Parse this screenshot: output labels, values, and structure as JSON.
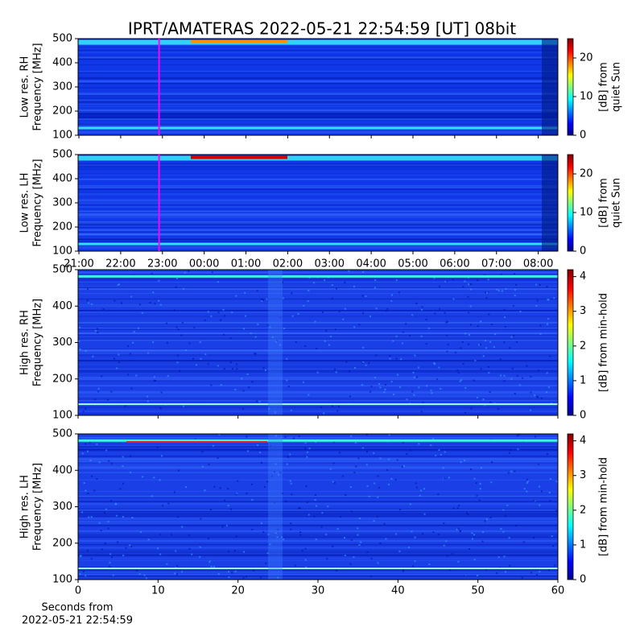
{
  "chart_data": [
    {
      "type": "heatmap",
      "title": "IPRT/AMATERAS 2022-05-21 22:54:59 [UT]   08bit",
      "ylabel": [
        "Low res. RH",
        "Frequency [MHz]"
      ],
      "ylim": [
        100,
        500
      ],
      "yticks": [
        100,
        200,
        300,
        400,
        500
      ],
      "colormap": "jet",
      "colorbar": {
        "label": [
          "[dB] from",
          "quiet Sun"
        ],
        "lim": [
          0,
          25
        ],
        "ticks": [
          0,
          10,
          20
        ]
      }
    },
    {
      "type": "heatmap",
      "ylabel": [
        "Low res. LH",
        "Frequency [MHz]"
      ],
      "ylim": [
        100,
        500
      ],
      "yticks": [
        100,
        200,
        300,
        400,
        500
      ],
      "xlim": [
        -0.02,
        11.47
      ],
      "xticks": [
        {
          "value": 0,
          "label": "21:00"
        },
        {
          "value": 1,
          "label": "22:00"
        },
        {
          "value": 2,
          "label": "23:00"
        },
        {
          "value": 3,
          "label": "00:00"
        },
        {
          "value": 4,
          "label": "01:00"
        },
        {
          "value": 5,
          "label": "02:00"
        },
        {
          "value": 6,
          "label": "03:00"
        },
        {
          "value": 7,
          "label": "04:00"
        },
        {
          "value": 8,
          "label": "05:00"
        },
        {
          "value": 9,
          "label": "06:00"
        },
        {
          "value": 10,
          "label": "07:00"
        },
        {
          "value": 11,
          "label": "08:00"
        }
      ],
      "cursor_x": 1.92,
      "cursor_color": "#ff00ff",
      "colormap": "jet",
      "colorbar": {
        "label": [
          "[dB] from",
          "quiet Sun"
        ],
        "lim": [
          0,
          25
        ],
        "ticks": [
          0,
          10,
          20
        ]
      }
    },
    {
      "type": "heatmap",
      "ylabel": [
        "High res. RH",
        "Frequency [MHz]"
      ],
      "ylim": [
        100,
        500
      ],
      "yticks": [
        100,
        200,
        300,
        400,
        500
      ],
      "colormap": "jet",
      "colorbar": {
        "label": [
          "[dB] from min-hold"
        ],
        "lim": [
          0,
          4.2
        ],
        "ticks": [
          0,
          1,
          2,
          3,
          4
        ]
      }
    },
    {
      "type": "heatmap",
      "ylabel": [
        "High res. LH",
        "Frequency [MHz]"
      ],
      "ylim": [
        100,
        500
      ],
      "yticks": [
        100,
        200,
        300,
        400,
        500
      ],
      "xlabel": [
        "Seconds from",
        "2022-05-21 22:54:59"
      ],
      "xlim": [
        0,
        60
      ],
      "xticks": [
        0,
        10,
        20,
        30,
        40,
        50,
        60
      ],
      "colormap": "jet",
      "colorbar": {
        "label": [
          "[dB] from min-hold"
        ],
        "lim": [
          0,
          4.2
        ],
        "ticks": [
          0,
          1,
          2,
          3,
          4
        ]
      }
    }
  ]
}
